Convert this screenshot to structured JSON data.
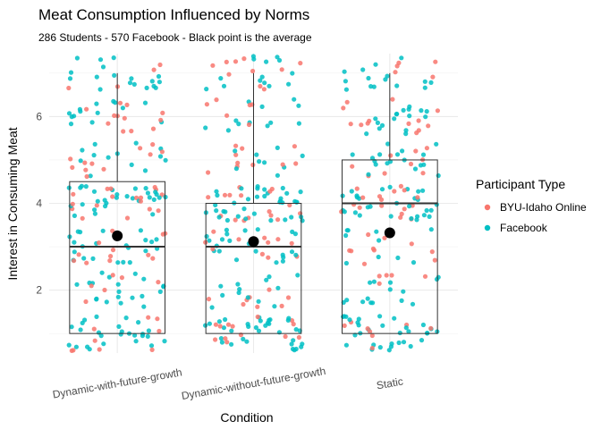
{
  "chart_data": {
    "type": "scatter",
    "subtype": "boxplot-with-jitter",
    "title": "Meat Consumption Influenced by Norms",
    "subtitle": "286 Students - 570 Facebook - Black point is the average",
    "xlabel": "Condition",
    "ylabel": "Interest in Consuming Meat",
    "categories": [
      "Dynamic-with-future-growth",
      "Dynamic-without-future-growth",
      "Static"
    ],
    "y_ticks": [
      2,
      4,
      6
    ],
    "ylim": [
      0.55,
      7.45
    ],
    "grid": true,
    "boxes": [
      {
        "category": "Dynamic-with-future-growth",
        "min": 1,
        "q1": 1,
        "median": 3,
        "q3": 4.5,
        "max": 7,
        "mean": 3.25
      },
      {
        "category": "Dynamic-without-future-growth",
        "min": 1,
        "q1": 1,
        "median": 3,
        "q3": 4,
        "max": 7,
        "mean": 3.12
      },
      {
        "category": "Static",
        "min": 1,
        "q1": 1,
        "median": 4,
        "q3": 5,
        "max": 7,
        "mean": 3.32
      }
    ],
    "legend": {
      "title": "Participant Type",
      "position": "right",
      "entries": [
        {
          "label": "BYU-Idaho Online",
          "color": "#f8766d"
        },
        {
          "label": "Facebook",
          "color": "#00bfc4"
        }
      ]
    },
    "series": [
      {
        "name": "BYU-Idaho Online",
        "color": "#f8766d",
        "counts": [
          [
            9,
            6,
            12,
            17,
            11,
            12,
            4
          ],
          [
            13,
            8,
            11,
            16,
            10,
            6,
            10
          ],
          [
            8,
            5,
            10,
            17,
            9,
            13,
            5
          ]
        ]
      },
      {
        "name": "Facebook",
        "color": "#00bfc4",
        "counts": [
          [
            26,
            20,
            22,
            30,
            13,
            14,
            18
          ],
          [
            34,
            13,
            22,
            37,
            9,
            12,
            14
          ],
          [
            32,
            15,
            10,
            29,
            18,
            17,
            15
          ]
        ]
      }
    ],
    "mean_point_color": "#000000"
  }
}
